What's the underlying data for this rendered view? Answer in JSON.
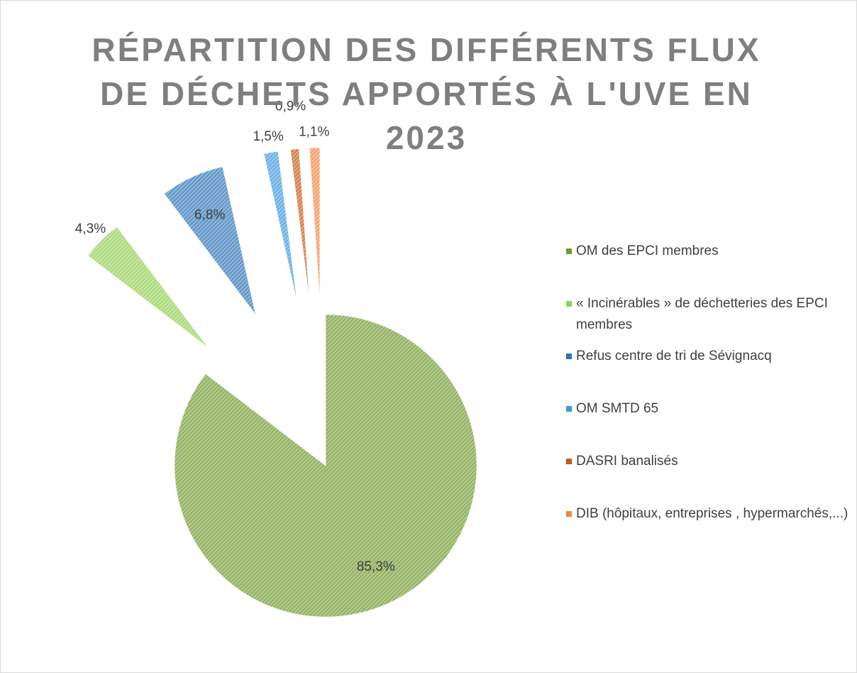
{
  "chart_data": {
    "type": "pie",
    "title": "RÉPARTITION DES DIFFÉRENTS FLUX DE DÉCHETS APPORTÉS À L'UVE EN 2023",
    "categories": [
      "OM des EPCI membres",
      "« Incinérables » de déchetteries des EPCI membres",
      "Refus centre de tri de Sévignacq",
      "OM SMTD 65",
      "DASRI banalisés",
      "DIB (hôpitaux, entreprises , hypermarchés,...)"
    ],
    "values": [
      85.3,
      4.3,
      6.8,
      1.5,
      0.9,
      1.1
    ],
    "value_labels": [
      "85,3%",
      "4,3%",
      "6,8%",
      "1,5%",
      "0,9%",
      "1,1%"
    ],
    "colors": [
      "#6f9a2e",
      "#92d050",
      "#2e75b6",
      "#3a9ae0",
      "#c55a11",
      "#f4853e"
    ],
    "legend": "right"
  }
}
